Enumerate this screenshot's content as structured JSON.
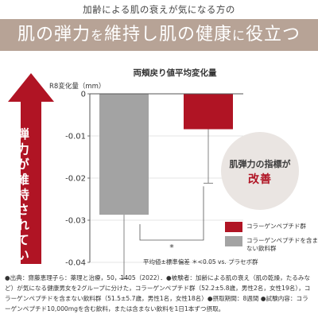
{
  "header": {
    "top_note": "加齢による肌の衰えが気になる方の",
    "banner_part1": "肌の弾力",
    "banner_part2": "を",
    "banner_part3": "維持し肌の健康",
    "banner_part4": "に",
    "banner_part5": "役立つ"
  },
  "side_arrow": {
    "label": "弾力が維持されている"
  },
  "callout": {
    "line1": "肌弾力の指標が",
    "line2": "改善"
  },
  "significance_mark": "*",
  "stat_note": "平均値±標準偏差 ＊<0.05 vs. プラセボ群",
  "legend": {
    "item1": "コラーゲンペプチド群",
    "item2": "コラーゲンペプチドを含まない飲料群"
  },
  "footnote": "●出典：齋藤恵理子ら：薬理と治療，50，1405（2022）．●被験者：加齢による肌の衰え（肌の乾燥，たるみなど）が気になる健康男女を2グループに分けた，コラーゲンペプチド群（52.2±5.8歳，男性2名，女性19名），コラーゲンペプチドを含まない飲料群（51.5±5.7歳，男性1名，女性18名）●摂取期間：8週間 ●試験内容：コラーゲンペプチド10,000mgを含む飲料，または含まない飲料を1日1本ずつ摂取。",
  "colors": {
    "banner": "#b7a396",
    "collagen": "#b01424",
    "placebo": "#a3a3a3",
    "bubble": "#eae5e2"
  },
  "chart_data": {
    "type": "bar",
    "title": "両頬戻り値平均変化量",
    "ylabel": "R8変化量（mm）",
    "ylim": [
      -0.04,
      0
    ],
    "yticks": [
      "0",
      "-0.01",
      "-0.02",
      "-0.03",
      "-0.04"
    ],
    "categories": [
      "コラーゲンペプチドを含まない飲料群",
      "コラーゲンペプチド群"
    ],
    "series": [
      {
        "name": "コラーゲンペプチドを含まない飲料群",
        "value": -0.0287,
        "error": 0.0152,
        "color": "#a3a3a3"
      },
      {
        "name": "コラーゲンペプチド群",
        "value": -0.0084,
        "error": 0.0128,
        "color": "#b01424"
      }
    ]
  }
}
